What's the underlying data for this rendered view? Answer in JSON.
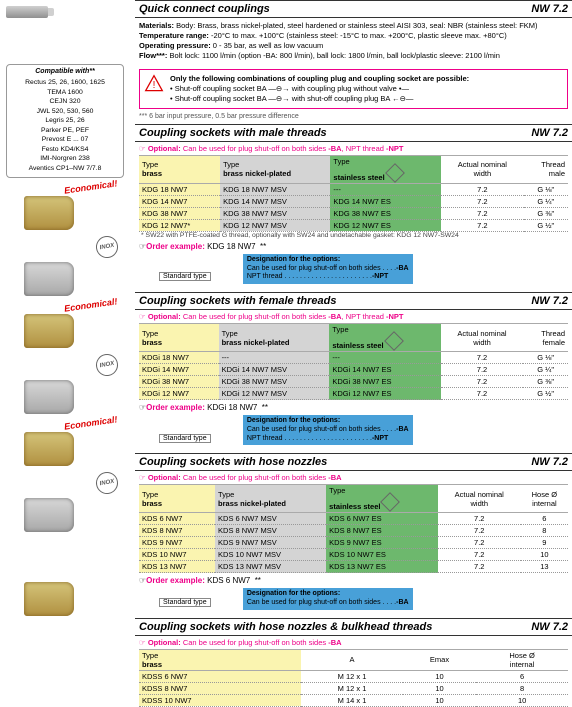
{
  "sections": {
    "quick": {
      "title": "Quick connect couplings",
      "nw": "NW 7.2",
      "materials_label": "Materials:",
      "materials": "Body: Brass, brass nickel-plated, steel hardened or stainless steel AISI 303, seal: NBR (stainless steel: FKM)",
      "temp_label": "Temperature range:",
      "temp": "-20°C to max. +100°C (stainless steel: -15°C to max. +200°C, plastic sleeve max. +80°C)",
      "press_label": "Operating pressure:",
      "press": "0 - 35 bar, as well as low vacuum",
      "flow_label": "Flow***:",
      "flow": "Bolt lock: 1100 l/min (option -BA: 800 l/min), ball lock: 1800 l/min, ball lock/plastic sleeve: 2100 l/min",
      "note_intro": "Only the following combinations of coupling plug and coupling socket are possible:",
      "note1a": "• Shut-off coupling socket BA",
      "note1b": "with coupling plug without valve",
      "note2a": "• Shut-off coupling socket BA",
      "note2b": "with shut-off coupling plug BA",
      "foot": "*** 6 bar input pressure, 0.5 bar pressure difference"
    },
    "male": {
      "title": "Coupling sockets with male threads",
      "nw": "NW 7.2",
      "optional": "Optional: Can be used for plug shut-off on both sides -BA, NPT thread -NPT",
      "h_type": "Type",
      "h_brass": "brass",
      "h_bnp": "brass nickel-plated",
      "h_ss": "stainless steel",
      "h_aw": "Actual nominal\nwidth",
      "h_thr": "Thread\nmale",
      "rows": [
        {
          "b": "KDG 18 NW7",
          "n": "KDG 18 NW7 MSV",
          "s": "---",
          "w": "7.2",
          "t": "G ⅛\""
        },
        {
          "b": "KDG 14 NW7",
          "n": "KDG 14 NW7 MSV",
          "s": "KDG 14 NW7 ES",
          "w": "7.2",
          "t": "G ¼\""
        },
        {
          "b": "KDG 38 NW7",
          "n": "KDG 38 NW7 MSV",
          "s": "KDG 38 NW7 ES",
          "w": "7.2",
          "t": "G ⅜\""
        },
        {
          "b": "KDG 12 NW7*",
          "n": "KDG 12 NW7 MSV",
          "s": "KDG 12 NW7 ES",
          "w": "7.2",
          "t": "G ½\""
        }
      ],
      "swnote": "* SW22 with PTFE-coated G thread, optionally with SW24 and undetachable gasket: KDG 12 NW7-SW24",
      "order_label": "Order example:",
      "order": "KDG 18 NW7",
      "std": "Standard type",
      "star": "**",
      "blue_title": "Designation for the options:",
      "blue1": "Can be used for plug shut-off on both sides . . . .",
      "blue1s": "-BA",
      "blue2": "NPT thread . . . . . . . . . . . . . . . . . . . . . . .",
      "blue2s": "-NPT"
    },
    "female": {
      "title": "Coupling sockets with female threads",
      "nw": "NW 7.2",
      "optional": "Optional: Can be used for plug shut-off on both sides -BA, NPT thread -NPT",
      "h_type": "Type",
      "h_brass": "brass",
      "h_bnp": "brass nickel-plated",
      "h_ss": "stainless steel",
      "h_aw": "Actual nominal\nwidth",
      "h_thr": "Thread\nfemale",
      "rows": [
        {
          "b": "KDGi 18 NW7",
          "n": "---",
          "s": "---",
          "w": "7.2",
          "t": "G ⅛\""
        },
        {
          "b": "KDGi 14 NW7",
          "n": "KDGi 14 NW7 MSV",
          "s": "KDGi 14 NW7 ES",
          "w": "7.2",
          "t": "G ¼\""
        },
        {
          "b": "KDGi 38 NW7",
          "n": "KDGi 38 NW7 MSV",
          "s": "KDGi 38 NW7 ES",
          "w": "7.2",
          "t": "G ⅜\""
        },
        {
          "b": "KDGi 12 NW7",
          "n": "KDGi 12 NW7 MSV",
          "s": "KDGi 12 NW7 ES",
          "w": "7.2",
          "t": "G ½\""
        }
      ],
      "order_label": "Order example:",
      "order": "KDGi 18 NW7",
      "std": "Standard type",
      "star": "**",
      "blue_title": "Designation for the options:",
      "blue1": "Can be used for plug shut-off on both sides . . . .",
      "blue1s": "-BA",
      "blue2": "NPT thread . . . . . . . . . . . . . . . . . . . . . . .",
      "blue2s": "-NPT"
    },
    "hose": {
      "title": "Coupling sockets with hose nozzles",
      "nw": "NW 7.2",
      "optional": "Optional: Can be used for plug shut-off on both sides -BA",
      "h_type": "Type",
      "h_brass": "brass",
      "h_bnp": "brass nickel-plated",
      "h_ss": "stainless steel",
      "h_aw": "Actual nominal\nwidth",
      "h_ho": "Hose Ø\ninternal",
      "rows": [
        {
          "b": "KDS 6 NW7",
          "n": "KDS 6 NW7 MSV",
          "s": "KDS 6 NW7 ES",
          "w": "7.2",
          "h": "6"
        },
        {
          "b": "KDS 8 NW7",
          "n": "KDS 8 NW7 MSV",
          "s": "KDS 8 NW7 ES",
          "w": "7.2",
          "h": "8"
        },
        {
          "b": "KDS 9 NW7",
          "n": "KDS 9 NW7 MSV",
          "s": "KDS 9 NW7 ES",
          "w": "7.2",
          "h": "9"
        },
        {
          "b": "KDS 10 NW7",
          "n": "KDS 10 NW7 MSV",
          "s": "KDS 10 NW7 ES",
          "w": "7.2",
          "h": "10"
        },
        {
          "b": "KDS 13 NW7",
          "n": "KDS 13 NW7 MSV",
          "s": "KDS 13 NW7 ES",
          "w": "7.2",
          "h": "13"
        }
      ],
      "order_label": "Order example:",
      "order": "KDS 6 NW7",
      "std": "Standard type",
      "star": "**",
      "blue_title": "Designation for the options:",
      "blue1": "Can be used for plug shut-off on both sides . . . .",
      "blue1s": "-BA"
    },
    "bulk": {
      "title": "Coupling sockets with hose nozzles & bulkhead threads",
      "nw": "NW 7.2",
      "optional": "Optional: Can be used for plug shut-off on both sides -BA",
      "h_type": "Type",
      "h_brass": "brass",
      "h_a": "A",
      "h_em": "Emax",
      "h_ho": "Hose Ø\ninternal",
      "rows": [
        {
          "b": "KDSS 6 NW7",
          "a": "M 12 x 1",
          "e": "10",
          "h": "6"
        },
        {
          "b": "KDSS 8 NW7",
          "a": "M 12 x 1",
          "e": "10",
          "h": "8"
        },
        {
          "b": "KDSS 10 NW7",
          "a": "M 14 x 1",
          "e": "10",
          "h": "10"
        }
      ]
    }
  },
  "compat": {
    "title": "Compatible with**",
    "items": [
      "Rectus 25, 26,\n1600, 1625",
      "TEMA 1600",
      "CEJN 320",
      "JWL 520, 530, 560",
      "Legris 25, 26",
      "Parker PE, PEF",
      "Prevost E ... 07",
      "Festo KD4/KS4",
      "IMI-Norgren 238",
      "Aventics CP1–NW 7/7.8"
    ]
  },
  "badges": {
    "eco": "Economical!",
    "inox": "INOX"
  },
  "style": {
    "yellow": "#faf4b0",
    "grey": "#d4d4d4",
    "green": "#6db86d",
    "accent": "#e08",
    "blue": "#48a0d8"
  }
}
